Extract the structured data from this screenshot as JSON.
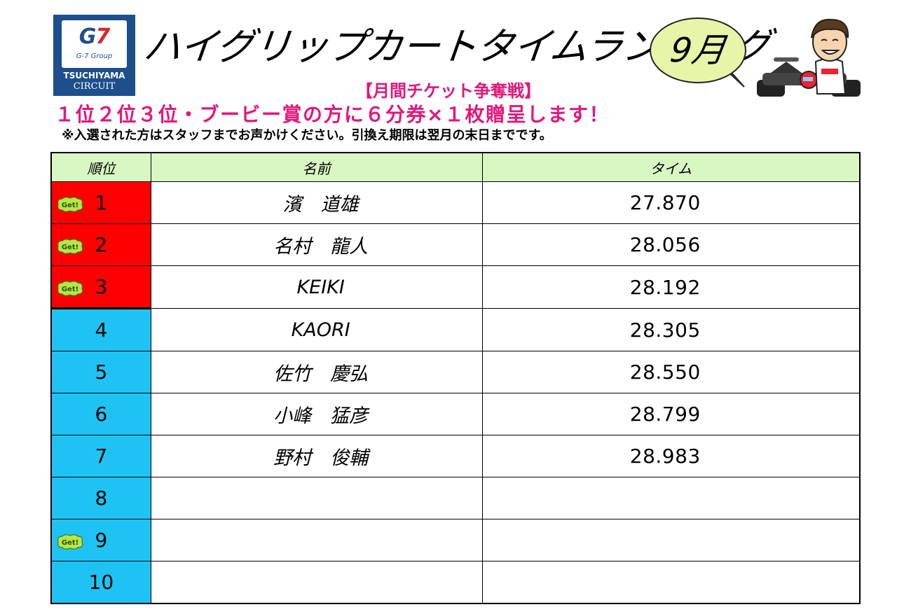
{
  "logo": {
    "mark": "G7",
    "group": "G-7 Group",
    "line1": "TSUCHIYAMA",
    "line2": "CIRCUIT"
  },
  "header": {
    "title": "ハイグリップカートタイムランキング",
    "month": "9月",
    "subtitle": "【月間チケット争奪戦】",
    "prize": "１位２位３位・ブービー賞の方に６分券×１枚贈呈します！",
    "note": "※入選された方はスタッフまでお声かけください。引換え期限は翌月の末日までです。"
  },
  "table": {
    "columns": [
      "順位",
      "名前",
      "タイム"
    ],
    "rows": [
      {
        "rank": "1",
        "name": "濱　道雄",
        "time": "27.870",
        "badge": true,
        "color": "red"
      },
      {
        "rank": "2",
        "name": "名村　龍人",
        "time": "28.056",
        "badge": true,
        "color": "red"
      },
      {
        "rank": "3",
        "name": "KEIKI",
        "time": "28.192",
        "badge": true,
        "color": "red"
      },
      {
        "rank": "4",
        "name": "KAORI",
        "time": "28.305",
        "badge": false,
        "color": "blue"
      },
      {
        "rank": "5",
        "name": "佐竹　慶弘",
        "time": "28.550",
        "badge": false,
        "color": "blue"
      },
      {
        "rank": "6",
        "name": "小峰　猛彦",
        "time": "28.799",
        "badge": false,
        "color": "blue"
      },
      {
        "rank": "7",
        "name": "野村　俊輔",
        "time": "28.983",
        "badge": false,
        "color": "blue"
      },
      {
        "rank": "8",
        "name": "",
        "time": "",
        "badge": false,
        "color": "blue"
      },
      {
        "rank": "9",
        "name": "",
        "time": "",
        "badge": true,
        "color": "blue"
      },
      {
        "rank": "10",
        "name": "",
        "time": "",
        "badge": false,
        "color": "blue"
      }
    ]
  },
  "badge_text": "Get!",
  "colors": {
    "top_rank": "#ff0000",
    "other_rank": "#1fc3f3",
    "header_bg": "#d8f7c3",
    "accent_pink": "#e4177a",
    "bubble": "#e7f5a8"
  }
}
